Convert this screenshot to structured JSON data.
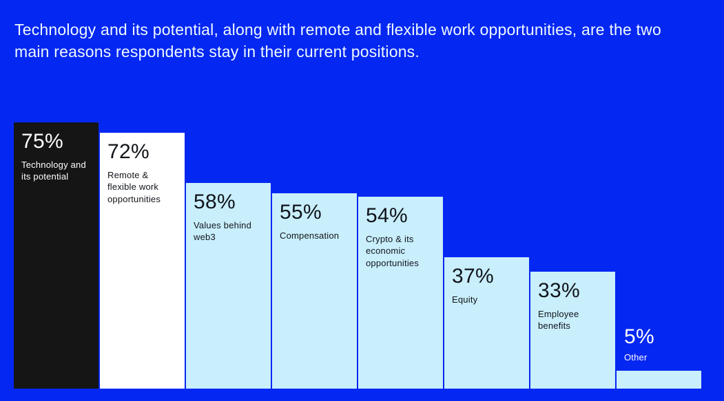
{
  "background": "#0527f2",
  "title": "Technology and its potential, along with remote and flexible work opportunities, are the two main reasons respondents stay in their current positions.",
  "chart_data": {
    "type": "bar",
    "title": "Technology and its potential, along with remote and flexible work opportunities, are the two main reasons respondents stay in their current positions.",
    "xlabel": "",
    "ylabel": "",
    "ylim": [
      0,
      80
    ],
    "grid": false,
    "legend": false,
    "categories": [
      "Technology and its potential",
      "Remote & flexible work opportunities",
      "Values behind web3",
      "Compensation",
      "Crypto & its economic opportunities",
      "Equity",
      "Employee benefits",
      "Other"
    ],
    "values": [
      75,
      72,
      58,
      55,
      54,
      37,
      33,
      5
    ],
    "colors": {
      "bar_dark": "#151515",
      "bar_white": "#ffffff",
      "bar_light": "#c9eefc",
      "text_light": "#ffffff",
      "text_dark": "#10141a"
    },
    "bars": [
      {
        "value": 75,
        "value_label": "75%",
        "label": "Technology and its potential",
        "fill": "#151515",
        "text": "#ffffff",
        "label_outside": false
      },
      {
        "value": 72,
        "value_label": "72%",
        "label": "Remote & flexible work opportunities",
        "fill": "#ffffff",
        "text": "#10141a",
        "label_outside": false
      },
      {
        "value": 58,
        "value_label": "58%",
        "label": "Values behind web3",
        "fill": "#c9eefc",
        "text": "#10141a",
        "label_outside": false
      },
      {
        "value": 55,
        "value_label": "55%",
        "label": "Compensation",
        "fill": "#c9eefc",
        "text": "#10141a",
        "label_outside": false
      },
      {
        "value": 54,
        "value_label": "54%",
        "label": "Crypto & its economic opportunities",
        "fill": "#c9eefc",
        "text": "#10141a",
        "label_outside": false
      },
      {
        "value": 37,
        "value_label": "37%",
        "label": "Equity",
        "fill": "#c9eefc",
        "text": "#10141a",
        "label_outside": false
      },
      {
        "value": 33,
        "value_label": "33%",
        "label": "Employee benefits",
        "fill": "#c9eefc",
        "text": "#10141a",
        "label_outside": false
      },
      {
        "value": 5,
        "value_label": "5%",
        "label": "Other",
        "fill": "#c9eefc",
        "text": "#ffffff",
        "label_outside": true
      }
    ]
  }
}
